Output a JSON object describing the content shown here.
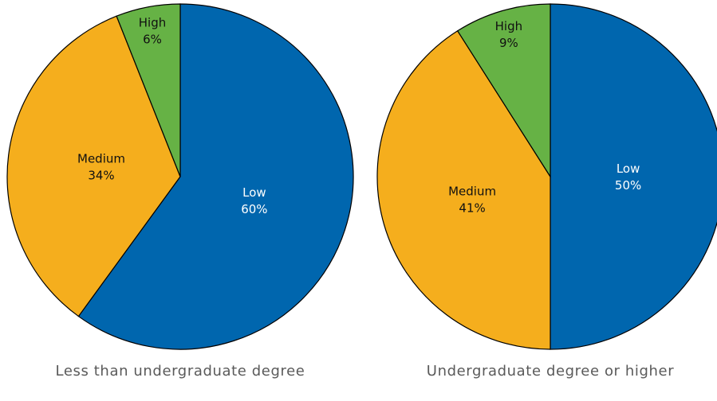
{
  "chart_data": [
    {
      "type": "pie",
      "title": "Less than undergraduate degree",
      "slices": [
        {
          "label": "Low",
          "value": 60,
          "value_label": "60%",
          "color": "#0066ae",
          "text_color": "#ffffff"
        },
        {
          "label": "Medium",
          "value": 34,
          "value_label": "34%",
          "color": "#f5ae1d",
          "text_color": "#111111"
        },
        {
          "label": "High",
          "value": 6,
          "value_label": "6%",
          "color": "#66b245",
          "text_color": "#111111"
        }
      ]
    },
    {
      "type": "pie",
      "title": "Undergraduate degree or higher",
      "slices": [
        {
          "label": "Low",
          "value": 50,
          "value_label": "50%",
          "color": "#0066ae",
          "text_color": "#ffffff"
        },
        {
          "label": "Medium",
          "value": 41,
          "value_label": "41%",
          "color": "#f5ae1d",
          "text_color": "#111111"
        },
        {
          "label": "High",
          "value": 9,
          "value_label": "9%",
          "color": "#66b245",
          "text_color": "#111111"
        }
      ]
    }
  ]
}
